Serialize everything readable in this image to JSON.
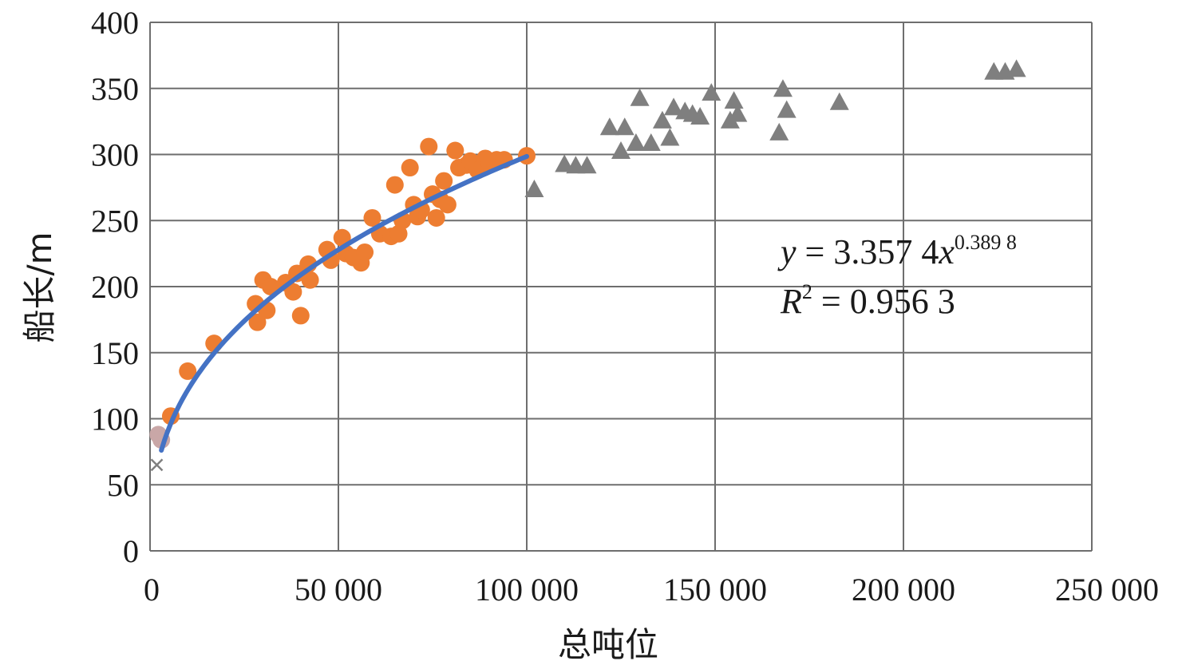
{
  "chart_data": {
    "type": "scatter",
    "title": "",
    "xlabel": "总吨位",
    "ylabel": "船长/m",
    "xlim": [
      0,
      250000
    ],
    "ylim": [
      0,
      400
    ],
    "x_ticks": [
      0,
      50000,
      100000,
      150000,
      200000,
      250000
    ],
    "x_tick_labels": [
      "0",
      "50 000",
      "100 000",
      "150 000",
      "200 000",
      "250 000"
    ],
    "y_ticks": [
      0,
      50,
      100,
      150,
      200,
      250,
      300,
      350,
      400
    ],
    "y_tick_labels": [
      "0",
      "50",
      "100",
      "150",
      "200",
      "250",
      "300",
      "350",
      "400"
    ],
    "grid": true,
    "series": [
      {
        "marker": "x",
        "color": "#7f7f7f",
        "points": [
          [
            1800,
            65
          ]
        ]
      },
      {
        "marker": "circle",
        "color": "#c9a7a7",
        "points": [
          [
            2200,
            88
          ],
          [
            3000,
            84
          ]
        ]
      },
      {
        "marker": "circle",
        "color": "#ed7d31",
        "points": [
          [
            5500,
            102
          ],
          [
            10000,
            136
          ],
          [
            17000,
            157
          ],
          [
            28000,
            187
          ],
          [
            28500,
            173
          ],
          [
            30000,
            205
          ],
          [
            31000,
            182
          ],
          [
            32000,
            200
          ],
          [
            36000,
            203
          ],
          [
            38000,
            196
          ],
          [
            39000,
            210
          ],
          [
            40000,
            178
          ],
          [
            42000,
            217
          ],
          [
            42500,
            205
          ],
          [
            47000,
            228
          ],
          [
            48000,
            220
          ],
          [
            51000,
            237
          ],
          [
            52000,
            225
          ],
          [
            54000,
            222
          ],
          [
            56000,
            218
          ],
          [
            57000,
            226
          ],
          [
            59000,
            252
          ],
          [
            61000,
            240
          ],
          [
            64000,
            238
          ],
          [
            65000,
            277
          ],
          [
            66000,
            240
          ],
          [
            67000,
            250
          ],
          [
            69000,
            290
          ],
          [
            70000,
            262
          ],
          [
            71000,
            253
          ],
          [
            72000,
            258
          ],
          [
            74000,
            306
          ],
          [
            75000,
            270
          ],
          [
            76000,
            252
          ],
          [
            77000,
            266
          ],
          [
            78000,
            280
          ],
          [
            79000,
            262
          ],
          [
            81000,
            303
          ],
          [
            82000,
            290
          ],
          [
            84000,
            292
          ],
          [
            85000,
            295
          ],
          [
            87000,
            288
          ],
          [
            89000,
            297
          ],
          [
            90000,
            294
          ],
          [
            92000,
            296
          ],
          [
            94000,
            296
          ],
          [
            100000,
            299
          ]
        ]
      },
      {
        "marker": "triangle",
        "color": "#7f7f7f",
        "points": [
          [
            102000,
            273
          ],
          [
            110000,
            292
          ],
          [
            113000,
            291
          ],
          [
            116000,
            291
          ],
          [
            122000,
            320
          ],
          [
            125000,
            302
          ],
          [
            126000,
            320
          ],
          [
            129000,
            308
          ],
          [
            130000,
            342
          ],
          [
            133000,
            308
          ],
          [
            136000,
            325
          ],
          [
            138000,
            312
          ],
          [
            139000,
            335
          ],
          [
            142000,
            332
          ],
          [
            144000,
            330
          ],
          [
            146000,
            328
          ],
          [
            149000,
            346
          ],
          [
            154000,
            325
          ],
          [
            155000,
            340
          ],
          [
            156000,
            330
          ],
          [
            167000,
            316
          ],
          [
            168000,
            349
          ],
          [
            169000,
            333
          ],
          [
            183000,
            339
          ],
          [
            224000,
            362
          ],
          [
            227000,
            362
          ],
          [
            230000,
            364
          ]
        ]
      }
    ],
    "trendline": {
      "color": "#4472c4",
      "a": 3.3574,
      "b": 0.3898,
      "x_range": [
        3000,
        100000
      ]
    },
    "annotation": {
      "equation_lead": "y",
      "equation_mid": " = 3.357 4",
      "equation_var": "x",
      "equation_exp": "0.389 8",
      "r2_lead": "R",
      "r2_exp": "2",
      "r2_value": " = 0.956 3"
    }
  }
}
